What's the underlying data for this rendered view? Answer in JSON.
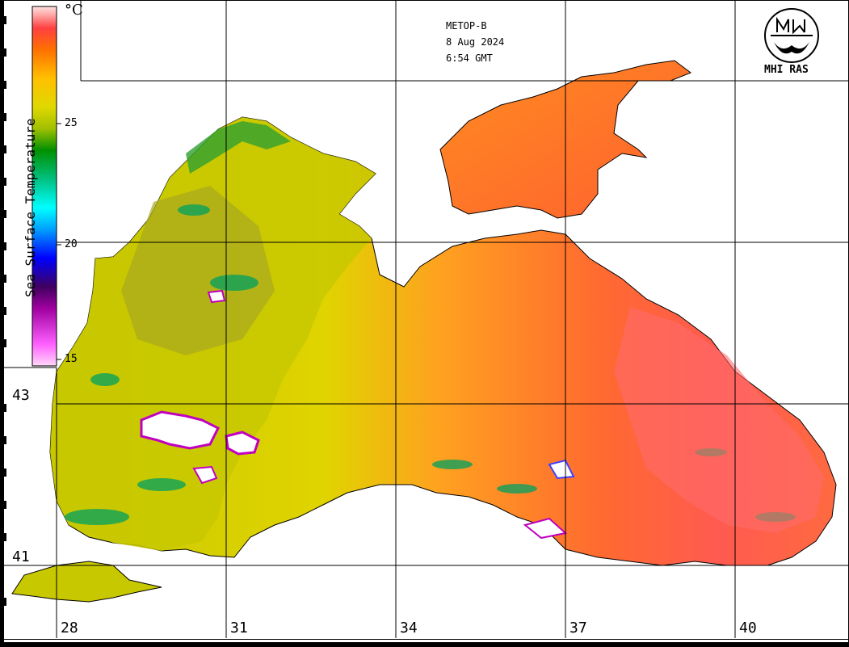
{
  "header": {
    "satellite": "METOP-B",
    "date": "8 Aug 2024",
    "time": "6:54 GMT"
  },
  "logo": {
    "text": "MHI RAS",
    "icon": "mhi-ras-logo-icon"
  },
  "legend": {
    "title": "Sea Surface Temperature",
    "unit": "°C",
    "ticks": [
      "15",
      "20",
      "25"
    ],
    "colors": [
      "#ffd8f8",
      "#ff40ff",
      "#c000c0",
      "#400080",
      "#0000ff",
      "#00b0ff",
      "#00ffff",
      "#00c080",
      "#008000",
      "#80c000",
      "#d8d800",
      "#ffc800",
      "#ff8000",
      "#ff3030",
      "#ff8080",
      "#ffd0d0"
    ]
  },
  "grid": {
    "latitudes": [
      "43",
      "41"
    ],
    "longitudes": [
      "28",
      "31",
      "34",
      "37",
      "40"
    ]
  },
  "colors": {
    "land": "#ffffff",
    "cold_yellow": "#d8d400",
    "warm_orange": "#ff8a20",
    "hot_red": "#ff5040",
    "grid_line": "#000000"
  }
}
